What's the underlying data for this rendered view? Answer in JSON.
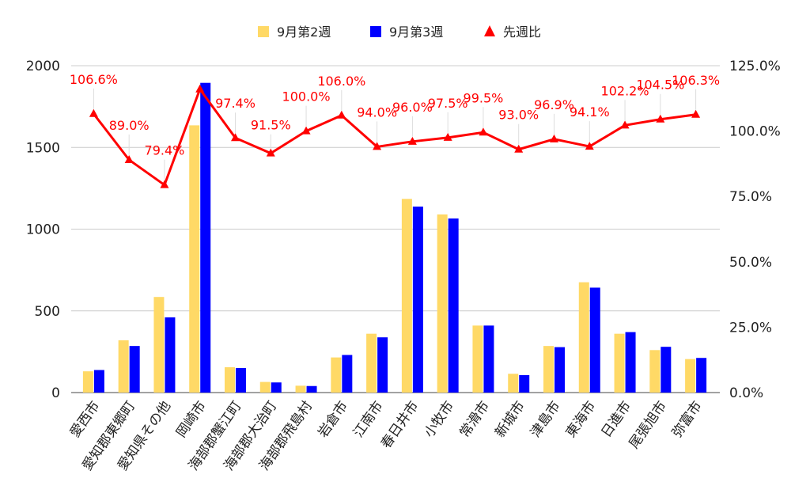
{
  "chart_data": {
    "type": "bar",
    "categories": [
      "愛西市",
      "愛知郡東郷町",
      "愛知県その他",
      "岡崎市",
      "海部郡蟹江町",
      "海部郡大治町",
      "海部郡飛島村",
      "岩倉市",
      "江南市",
      "春日井市",
      "小牧市",
      "常滑市",
      "新城市",
      "津島市",
      "東海市",
      "日進市",
      "尾張旭市",
      "弥富市"
    ],
    "series": [
      {
        "name": "9月第2週",
        "type": "bar",
        "axis": "left",
        "color": "#ffd966",
        "values": [
          130,
          320,
          585,
          1635,
          155,
          65,
          42,
          215,
          360,
          1185,
          1090,
          410,
          115,
          285,
          675,
          360,
          260,
          205
        ]
      },
      {
        "name": "9月第3週",
        "type": "bar",
        "axis": "left",
        "color": "#0000ff",
        "values": [
          138,
          285,
          460,
          1895,
          150,
          62,
          40,
          230,
          338,
          1138,
          1065,
          410,
          107,
          278,
          642,
          370,
          280,
          212
        ]
      },
      {
        "name": "先週比",
        "type": "line",
        "axis": "right",
        "color": "#ff0000",
        "values": [
          106.6,
          89.0,
          79.4,
          116.0,
          97.4,
          91.5,
          100.0,
          106.0,
          94.0,
          96.0,
          97.5,
          99.5,
          93.0,
          96.9,
          94.1,
          102.2,
          104.5,
          106.3
        ],
        "labels": [
          "106.6%",
          "89.0%",
          "79.4%",
          "",
          "97.4%",
          "91.5%",
          "100.0%",
          "106.0%",
          "94.0%",
          "96.0%",
          "97.5%",
          "99.5%",
          "93.0%",
          "96.9%",
          "94.1%",
          "102.2%",
          "104.5%",
          "106.3%"
        ]
      }
    ],
    "left_axis": {
      "ticks": [
        "0",
        "500",
        "1000",
        "1500",
        "2000"
      ],
      "min": 0,
      "max": 2000
    },
    "right_axis": {
      "ticks": [
        "0.0%",
        "25.0%",
        "50.0%",
        "75.0%",
        "100.0%",
        "125.0%"
      ],
      "min": 0,
      "max": 125
    },
    "grid": true,
    "legend": "top-center",
    "title": "",
    "xlabel": "",
    "ylabel": ""
  }
}
